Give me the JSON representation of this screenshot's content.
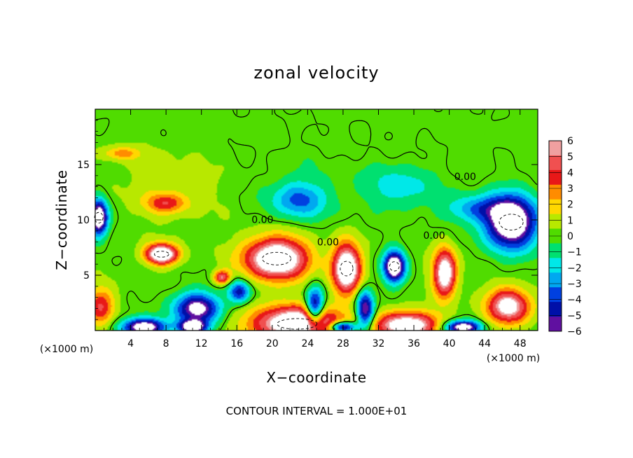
{
  "chart_data": {
    "type": "heatmap",
    "title": "zonal velocity",
    "xlabel": "X−coordinate",
    "ylabel": "Z−coordinate",
    "x_unit": "(×1000 m)",
    "x_unit_right": "(×1000 m)",
    "footer": "CONTOUR INTERVAL = 1.000E+01",
    "xlim": [
      0,
      50
    ],
    "ylim": [
      0,
      20
    ],
    "x_ticks": [
      "4",
      "8",
      "12",
      "16",
      "20",
      "24",
      "28",
      "32",
      "36",
      "40",
      "44",
      "48"
    ],
    "x_tick_values": [
      4,
      8,
      12,
      16,
      20,
      24,
      28,
      32,
      36,
      40,
      44,
      48
    ],
    "y_ticks": [
      "5",
      "10",
      "15"
    ],
    "y_tick_values": [
      5,
      10,
      15
    ],
    "colorbar": {
      "labels": [
        "6",
        "5",
        "4",
        "3",
        "2",
        "1",
        "0",
        "−1",
        "−2",
        "−3",
        "−4",
        "−5",
        "−6"
      ],
      "colors": [
        "#f0a0a0",
        "#f05050",
        "#e81818",
        "#ff8c00",
        "#ffd700",
        "#b8e800",
        "#50dc00",
        "#00e070",
        "#00e8e8",
        "#00a8f0",
        "#0040e0",
        "#0010a8",
        "#6010a0"
      ]
    },
    "contour_labels": [
      {
        "text": "0.00",
        "x": 41.8,
        "z": 13.6
      },
      {
        "text": "0.00",
        "x": 18.9,
        "z": 9.7
      },
      {
        "text": "0.00",
        "x": 26.3,
        "z": 7.7
      },
      {
        "text": "0.00",
        "x": 38.3,
        "z": 8.3
      }
    ],
    "features": [
      {
        "type": "max",
        "x": 20.5,
        "z": 6.5,
        "rx": 3.6,
        "rz": 1.9,
        "level": 1.0
      },
      {
        "type": "max",
        "x": 7.5,
        "z": 6.9,
        "rx": 1.8,
        "rz": 0.9,
        "level": 1.0
      },
      {
        "type": "max",
        "x": 28.4,
        "z": 5.6,
        "rx": 1.6,
        "rz": 2.2,
        "level": 1.0
      },
      {
        "type": "max",
        "x": 39.5,
        "z": 5.2,
        "rx": 1.3,
        "rz": 2.1,
        "level": 0.9
      },
      {
        "type": "max",
        "x": 46.7,
        "z": 2.2,
        "rx": 2.4,
        "rz": 1.6,
        "level": 0.8
      },
      {
        "type": "max",
        "x": 22.8,
        "z": 0.6,
        "rx": 5.0,
        "rz": 1.6,
        "level": 1.0
      },
      {
        "type": "max",
        "x": 35.2,
        "z": 0.5,
        "rx": 3.5,
        "rz": 1.2,
        "level": 0.9
      },
      {
        "type": "max",
        "x": 14.3,
        "z": 4.8,
        "rx": 0.9,
        "rz": 0.6,
        "level": 0.6
      },
      {
        "type": "max",
        "x": 0.6,
        "z": 2.2,
        "rx": 1.5,
        "rz": 1.6,
        "level": 0.5
      },
      {
        "type": "max",
        "x": 3.0,
        "z": 16.0,
        "rx": 2.0,
        "rz": 0.6,
        "level": 0.3
      },
      {
        "type": "max",
        "x": 8.0,
        "z": 11.5,
        "rx": 2.3,
        "rz": 0.9,
        "level": 0.4
      },
      {
        "type": "min",
        "x": 47.0,
        "z": 9.8,
        "rx": 3.0,
        "rz": 2.4,
        "level": 1.0
      },
      {
        "type": "min",
        "x": 33.8,
        "z": 5.8,
        "rx": 1.2,
        "rz": 1.4,
        "level": 1.0
      },
      {
        "type": "min",
        "x": 0.4,
        "z": 10.2,
        "rx": 1.0,
        "rz": 1.6,
        "level": 1.0
      },
      {
        "type": "min",
        "x": 24.8,
        "z": 2.0,
        "rx": 1.0,
        "rz": 1.8,
        "level": 0.8
      },
      {
        "type": "min",
        "x": 30.5,
        "z": 1.8,
        "rx": 1.0,
        "rz": 1.8,
        "level": 0.8
      },
      {
        "type": "min",
        "x": 11.5,
        "z": 2.0,
        "rx": 2.6,
        "rz": 1.4,
        "level": 0.8
      },
      {
        "type": "min",
        "x": 5.5,
        "z": 0.3,
        "rx": 2.5,
        "rz": 0.8,
        "level": 0.9
      },
      {
        "type": "min",
        "x": 11.0,
        "z": 0.3,
        "rx": 1.5,
        "rz": 0.6,
        "level": 0.9
      },
      {
        "type": "min",
        "x": 28.0,
        "z": 0.3,
        "rx": 1.5,
        "rz": 0.5,
        "level": 0.9
      },
      {
        "type": "min",
        "x": 41.5,
        "z": 0.3,
        "rx": 2.0,
        "rz": 0.6,
        "level": 0.9
      },
      {
        "type": "min",
        "x": 16.3,
        "z": 3.5,
        "rx": 1.2,
        "rz": 1.0,
        "level": 0.6
      },
      {
        "type": "min",
        "x": 23.0,
        "z": 11.8,
        "rx": 3.0,
        "rz": 1.6,
        "level": 0.4
      },
      {
        "type": "min",
        "x": 43.0,
        "z": 11.0,
        "rx": 3.5,
        "rz": 1.2,
        "level": 0.35
      },
      {
        "type": "min",
        "x": 34.5,
        "z": 13.0,
        "rx": 4.0,
        "rz": 2.0,
        "level": 0.25
      }
    ]
  }
}
